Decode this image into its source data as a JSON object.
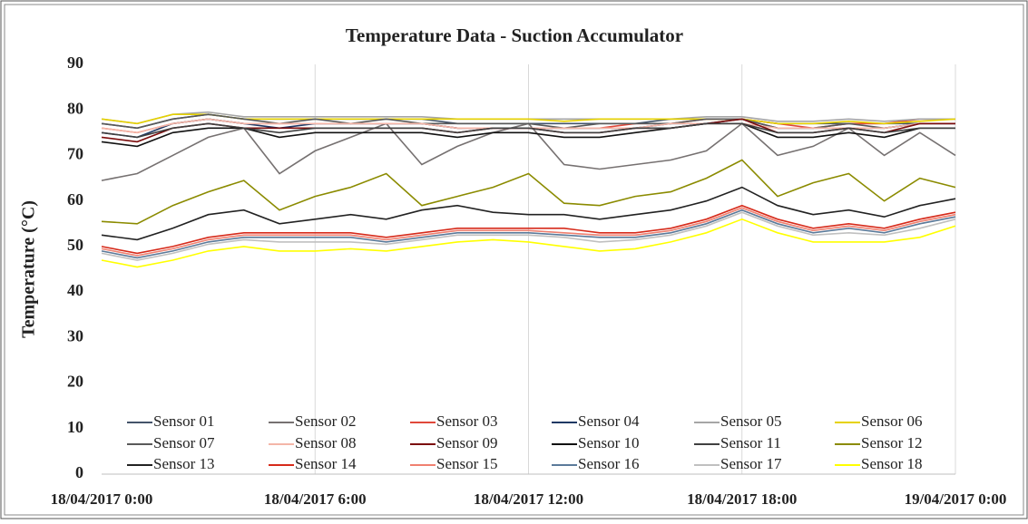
{
  "chart_data": {
    "type": "line",
    "title": "Temperature  Data - Suction Accumulator",
    "ylabel": "Temperature  (°C)",
    "x": [
      "18/04/2017 0:00",
      "18/04/2017 1:00",
      "18/04/2017 2:00",
      "18/04/2017 3:00",
      "18/04/2017 4:00",
      "18/04/2017 5:00",
      "18/04/2017 6:00",
      "18/04/2017 7:00",
      "18/04/2017 8:00",
      "18/04/2017 9:00",
      "18/04/2017 10:00",
      "18/04/2017 11:00",
      "18/04/2017 12:00",
      "18/04/2017 13:00",
      "18/04/2017 14:00",
      "18/04/2017 15:00",
      "18/04/2017 16:00",
      "18/04/2017 17:00",
      "18/04/2017 18:00",
      "18/04/2017 19:00",
      "18/04/2017 20:00",
      "18/04/2017 21:00",
      "18/04/2017 22:00",
      "18/04/2017 23:00",
      "19/04/2017 0:00"
    ],
    "xticks": [
      "18/04/2017 0:00",
      "18/04/2017 6:00",
      "18/04/2017 12:00",
      "18/04/2017 18:00",
      "19/04/2017 0:00"
    ],
    "ylim": [
      0,
      90
    ],
    "yticks": [
      0,
      10,
      20,
      30,
      40,
      50,
      60,
      70,
      80,
      90
    ],
    "grid": "x",
    "series": [
      {
        "name": "Sensor 01",
        "color": "#44546a",
        "values": [
          77,
          76,
          78,
          79,
          78,
          78,
          78,
          78,
          78,
          78,
          77,
          77,
          77,
          77,
          77,
          77,
          78,
          78,
          78,
          77,
          77,
          77,
          77,
          77,
          77
        ]
      },
      {
        "name": "Sensor 02",
        "color": "#767171",
        "values": [
          64.5,
          66,
          70,
          74,
          76,
          66,
          71,
          74,
          77,
          68,
          72,
          75,
          77,
          68,
          67,
          68,
          69,
          71,
          77,
          70,
          72,
          76,
          70,
          75,
          70
        ]
      },
      {
        "name": "Sensor 03",
        "color": "#e0483a",
        "values": [
          76,
          75,
          77,
          78,
          77,
          77,
          77,
          77,
          77,
          77,
          76,
          76,
          76,
          76,
          76,
          77,
          77,
          78,
          78,
          77,
          76,
          77,
          77,
          78,
          78
        ]
      },
      {
        "name": "Sensor 04",
        "color": "#1f3864",
        "values": [
          75,
          74,
          77,
          78,
          77,
          76,
          77,
          77,
          77,
          77,
          76,
          76,
          76,
          76,
          76,
          76,
          77,
          77,
          78,
          76,
          76,
          76,
          76,
          77,
          77
        ]
      },
      {
        "name": "Sensor 05",
        "color": "#a6a6a6",
        "values": [
          78,
          77,
          79,
          79.5,
          78.5,
          78.5,
          78.5,
          78.5,
          78.5,
          78.5,
          78,
          78,
          78,
          78,
          78,
          78,
          78,
          78.5,
          78.5,
          77.5,
          77.5,
          78,
          77.5,
          78,
          78
        ]
      },
      {
        "name": "Sensor 06",
        "color": "#e6d200",
        "values": [
          78,
          77,
          79,
          79,
          78,
          78,
          78,
          78,
          78,
          78,
          78,
          78,
          78,
          77.5,
          78,
          78,
          78,
          78,
          78,
          77,
          77,
          77.5,
          77,
          77.5,
          78
        ]
      },
      {
        "name": "Sensor 07",
        "color": "#595959",
        "values": [
          77,
          76,
          78,
          79,
          78,
          77,
          78,
          77,
          78,
          77,
          77,
          77,
          77,
          76,
          77,
          77,
          77,
          78,
          78,
          76,
          76,
          77,
          76,
          77,
          77
        ]
      },
      {
        "name": "Sensor 08",
        "color": "#f4b6a8",
        "values": [
          76,
          75,
          77,
          78,
          77,
          77,
          77,
          77,
          77,
          77,
          76,
          76,
          76,
          76,
          76,
          76,
          77,
          77,
          77,
          76,
          76,
          76,
          76,
          77,
          77
        ]
      },
      {
        "name": "Sensor 09",
        "color": "#7b0c0c",
        "values": [
          74,
          73,
          76,
          77,
          76,
          76,
          76,
          76,
          76,
          76,
          75,
          76,
          76,
          75,
          75,
          76,
          76,
          77,
          78,
          75,
          75,
          76,
          75,
          77,
          77
        ]
      },
      {
        "name": "Sensor 10",
        "color": "#111111",
        "values": [
          73,
          72,
          75,
          76,
          76,
          74,
          75,
          75,
          75,
          75,
          74,
          75,
          75,
          74,
          74,
          75,
          76,
          77,
          77,
          74,
          74,
          75,
          74,
          76,
          76
        ]
      },
      {
        "name": "Sensor 11",
        "color": "#404040",
        "values": [
          75,
          74,
          76,
          77,
          76,
          75,
          76,
          76,
          76,
          76,
          75,
          76,
          76,
          75,
          75,
          76,
          76,
          77,
          77,
          75,
          75,
          76,
          75,
          76,
          76
        ]
      },
      {
        "name": "Sensor 12",
        "color": "#8b8b00",
        "values": [
          55.5,
          55,
          59,
          62,
          64.5,
          58,
          61,
          63,
          66,
          59,
          61,
          63,
          66,
          59.5,
          59,
          61,
          62,
          65,
          69,
          61,
          64,
          66,
          60,
          65,
          63
        ]
      },
      {
        "name": "Sensor 13",
        "color": "#222222",
        "values": [
          52.5,
          51.5,
          54,
          57,
          58,
          55,
          56,
          57,
          56,
          58,
          59,
          57.5,
          57,
          57,
          56,
          57,
          58,
          60,
          63,
          59,
          57,
          58,
          56.5,
          59,
          60.5
        ]
      },
      {
        "name": "Sensor 14",
        "color": "#d62a1a",
        "values": [
          50,
          48.5,
          50,
          52,
          53,
          53,
          53,
          53,
          52,
          53,
          54,
          54,
          54,
          54,
          53,
          53,
          54,
          56,
          59,
          56,
          54,
          55,
          54,
          56,
          57.5
        ]
      },
      {
        "name": "Sensor 15",
        "color": "#f08070",
        "values": [
          49.5,
          48,
          49.5,
          51.5,
          52.5,
          52.5,
          52.5,
          52.5,
          51.5,
          52.5,
          53.5,
          53.5,
          53.5,
          53,
          52.5,
          52.5,
          53.5,
          55.5,
          58.5,
          55.5,
          53.5,
          54.5,
          53.5,
          55.5,
          57
        ]
      },
      {
        "name": "Sensor 16",
        "color": "#5b7a9a",
        "values": [
          49,
          47.5,
          49,
          51,
          52,
          52,
          52,
          52,
          51,
          52,
          53,
          53,
          53,
          52.5,
          52,
          52,
          53,
          55,
          58,
          55,
          53,
          54,
          53,
          55,
          56.5
        ]
      },
      {
        "name": "Sensor 17",
        "color": "#c0c0c0",
        "values": [
          48.5,
          47,
          48.5,
          50.5,
          51.5,
          51,
          51,
          51,
          50.5,
          51.5,
          52.5,
          52.5,
          52.5,
          52,
          51,
          51.5,
          52.5,
          54.5,
          57.5,
          54.5,
          52.5,
          53,
          52.5,
          54,
          56
        ]
      },
      {
        "name": "Sensor 18",
        "color": "#ffff00",
        "values": [
          47,
          45.5,
          47,
          49,
          50,
          49,
          49,
          49.5,
          49,
          50,
          51,
          51.5,
          51,
          50,
          49,
          49.5,
          51,
          53,
          56,
          53,
          51,
          51,
          51,
          52,
          54.5
        ]
      }
    ]
  }
}
